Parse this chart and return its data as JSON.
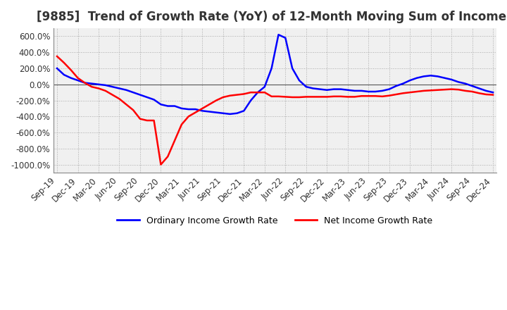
{
  "title": "[9885]  Trend of Growth Rate (YoY) of 12-Month Moving Sum of Incomes",
  "title_fontsize": 12,
  "background_color": "#ffffff",
  "plot_background_color": "#f0f0f0",
  "grid_color": "#aaaaaa",
  "ordinary_color": "#0000ff",
  "net_color": "#ff0000",
  "ylim": [
    -1100,
    700
  ],
  "yticks": [
    600,
    400,
    200,
    0,
    -200,
    -400,
    -600,
    -800,
    -1000
  ],
  "legend_labels": [
    "Ordinary Income Growth Rate",
    "Net Income Growth Rate"
  ],
  "x_tick_labels": [
    "Sep-19",
    "Dec-19",
    "Mar-20",
    "Jun-20",
    "Sep-20",
    "Dec-20",
    "Mar-21",
    "Jun-21",
    "Sep-21",
    "Dec-21",
    "Mar-22",
    "Jun-22",
    "Sep-22",
    "Dec-22",
    "Mar-23",
    "Jun-23",
    "Sep-23",
    "Dec-23",
    "Mar-24",
    "Jun-24",
    "Sep-24",
    "Dec-24"
  ],
  "ordinary_values": [
    200,
    120,
    80,
    50,
    20,
    10,
    0,
    -10,
    -30,
    -50,
    -70,
    -100,
    -130,
    -160,
    -190,
    -250,
    -270,
    -270,
    -300,
    -310,
    -310,
    -330,
    -340,
    -350,
    -360,
    -370,
    -360,
    -330,
    -200,
    -100,
    -30,
    200,
    620,
    580,
    200,
    50,
    -30,
    -50,
    -60,
    -70,
    -60,
    -60,
    -70,
    -80,
    -80,
    -90,
    -90,
    -80,
    -60,
    -20,
    10,
    50,
    80,
    100,
    110,
    100,
    80,
    60,
    30,
    10,
    -20,
    -50,
    -80,
    -100
  ],
  "net_values": [
    350,
    270,
    180,
    80,
    20,
    -30,
    -50,
    -80,
    -130,
    -180,
    -250,
    -320,
    -430,
    -450,
    -450,
    -1000,
    -900,
    -700,
    -500,
    -400,
    -350,
    -300,
    -250,
    -200,
    -160,
    -140,
    -130,
    -120,
    -100,
    -100,
    -100,
    -150,
    -150,
    -155,
    -160,
    -160,
    -155,
    -155,
    -155,
    -155,
    -150,
    -150,
    -155,
    -155,
    -145,
    -145,
    -145,
    -150,
    -140,
    -125,
    -110,
    -100,
    -90,
    -80,
    -75,
    -70,
    -65,
    -60,
    -65,
    -80,
    -90,
    -110,
    -125,
    -130
  ]
}
